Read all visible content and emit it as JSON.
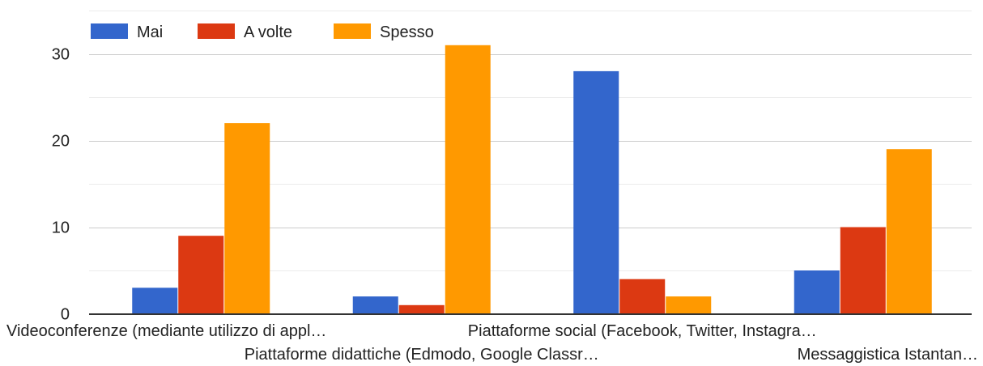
{
  "chart_data": {
    "type": "bar",
    "categories": [
      "Videoconferenze (mediante utilizzo di appl…",
      "Piattaforme didattiche (Edmodo, Google Classr…",
      "Piattaforme social (Facebook, Twitter, Instagra…",
      "Messaggistica Istantan…"
    ],
    "series": [
      {
        "name": "Mai",
        "color": "#3366cc",
        "values": [
          3,
          2,
          28,
          5
        ]
      },
      {
        "name": "A volte",
        "color": "#dc3912",
        "values": [
          9,
          1,
          4,
          10
        ]
      },
      {
        "name": "Spesso",
        "color": "#ff9900",
        "values": [
          22,
          31,
          2,
          19
        ]
      }
    ],
    "yticks": [
      0,
      10,
      20,
      30
    ],
    "ylim": [
      0,
      35
    ],
    "grid": true,
    "legend_position": "top-left",
    "title": "",
    "xlabel": "",
    "ylabel": ""
  }
}
